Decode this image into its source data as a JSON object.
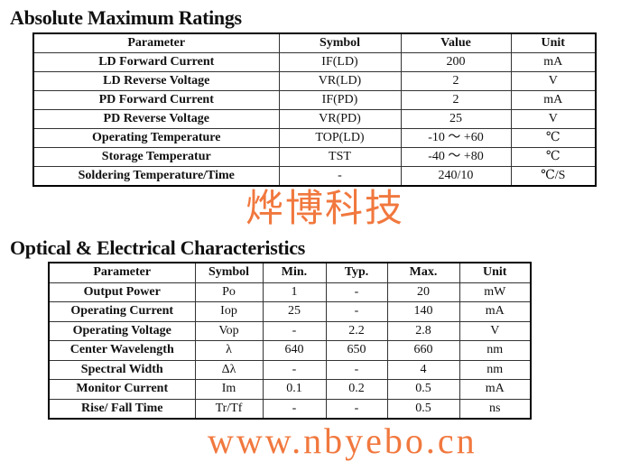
{
  "section1": {
    "title": "Absolute Maximum Ratings",
    "headers": [
      "Parameter",
      "Symbol",
      "Value",
      "Unit"
    ],
    "rows": [
      [
        "LD Forward Current",
        "IF(LD)",
        "200",
        "mA"
      ],
      [
        "LD Reverse Voltage",
        "VR(LD)",
        "2",
        "V"
      ],
      [
        "PD Forward Current",
        "IF(PD)",
        "2",
        "mA"
      ],
      [
        "PD Reverse Voltage",
        "VR(PD)",
        "25",
        "V"
      ],
      [
        "Operating Temperature",
        "TOP(LD)",
        "-10 ～ +60",
        "℃"
      ],
      [
        "Storage Temperatur",
        "TST",
        "-40 ～ +80",
        "℃"
      ],
      [
        "Soldering Temperature/Time",
        "-",
        "240/10",
        "℃/S"
      ]
    ]
  },
  "section2": {
    "title": "Optical & Electrical Characteristics",
    "headers": [
      "Parameter",
      "Symbol",
      "Min.",
      "Typ.",
      "Max.",
      "Unit"
    ],
    "rows": [
      [
        "Output Power",
        "Po",
        "1",
        "-",
        "20",
        "mW"
      ],
      [
        "Operating Current",
        "Iop",
        "25",
        "-",
        "140",
        "mA"
      ],
      [
        "Operating Voltage",
        "Vop",
        "-",
        "2.2",
        "2.8",
        "V"
      ],
      [
        "Center Wavelength",
        "λ",
        "640",
        "650",
        "660",
        "nm"
      ],
      [
        "Spectral Width",
        "Δλ",
        "-",
        "-",
        "4",
        "nm"
      ],
      [
        "Monitor Current",
        "Im",
        "0.1",
        "0.2",
        "0.5",
        "mA"
      ],
      [
        "Rise/ Fall Time",
        "Tr/Tf",
        "-",
        "-",
        "0.5",
        "ns"
      ]
    ]
  },
  "watermark": {
    "chinese": "烨博科技",
    "url": "www.nbyebo.cn",
    "color": "#f06a2a"
  }
}
